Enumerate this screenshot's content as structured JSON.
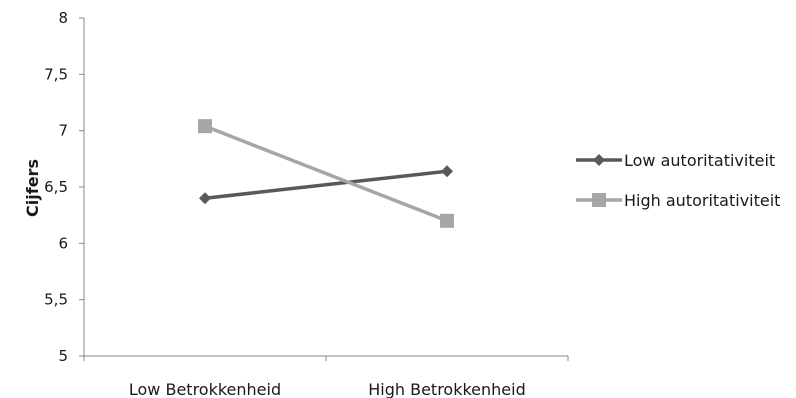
{
  "chart_data": {
    "type": "line",
    "categories": [
      "Low Betrokkenheid",
      "High Betrokkenheid"
    ],
    "series": [
      {
        "name": "Low autoritativiteit",
        "values": [
          6.4,
          6.64
        ],
        "color": "#595959",
        "marker": "diamond"
      },
      {
        "name": "High autoritativiteit",
        "values": [
          7.04,
          6.2
        ],
        "color": "#a6a6a6",
        "marker": "square"
      }
    ],
    "xlabel": "",
    "ylabel": "Cijfers",
    "ylim": [
      5,
      8
    ],
    "yticks": [
      "5",
      "5,5",
      "6",
      "6,5",
      "7",
      "7,5",
      "8"
    ],
    "grid": false,
    "legend_position": "right"
  }
}
